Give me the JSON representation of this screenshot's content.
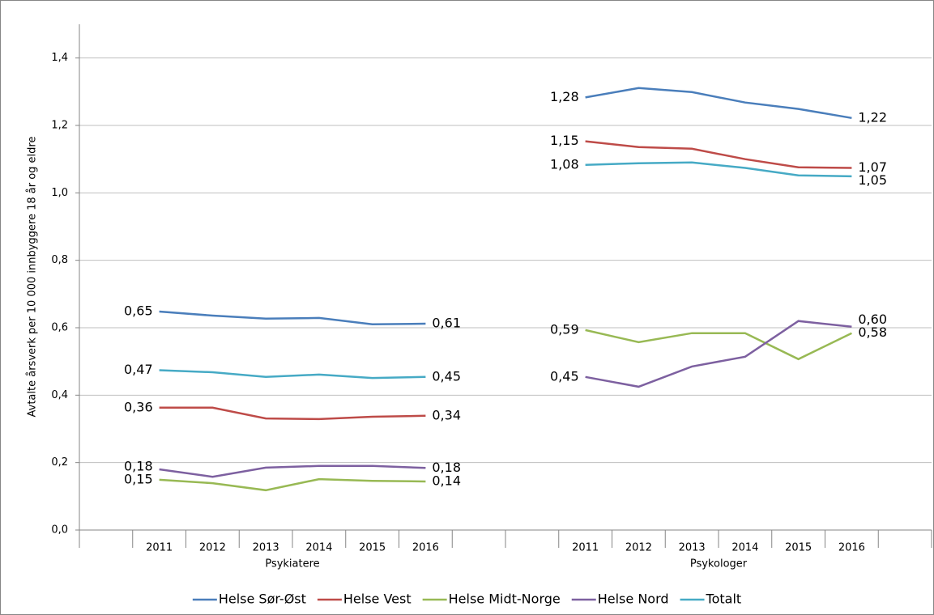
{
  "chart_data": {
    "type": "line",
    "y_label": "Avtalte årsverk per 10 000 innbyggere 18 år og eldre",
    "categories": [
      null,
      "2011",
      "2012",
      "2013",
      "2014",
      "2015",
      "2016",
      null,
      null,
      "2011",
      "2012",
      "2013",
      "2014",
      "2015",
      "2016",
      null
    ],
    "group_labels": [
      "Psykiatere",
      "Psykologer"
    ],
    "ylim": [
      0,
      1.5
    ],
    "yticks": [
      {
        "value": 0,
        "label": "0,0"
      },
      {
        "value": 0.2,
        "label": "0,2"
      },
      {
        "value": 0.4,
        "label": "0,4"
      },
      {
        "value": 0.6,
        "label": "0,6"
      },
      {
        "value": 0.8,
        "label": "0,8"
      },
      {
        "value": 1.0,
        "label": "1,0"
      },
      {
        "value": 1.2,
        "label": "1,2"
      },
      {
        "value": 1.4,
        "label": "1,4"
      }
    ],
    "grid": true,
    "legend": "bottom",
    "series": [
      {
        "name": "Helse Sør-Øst",
        "color": "#4a7ebb",
        "values": [
          null,
          0.648,
          0.636,
          0.627,
          0.629,
          0.61,
          0.612,
          null,
          null,
          1.283,
          1.311,
          1.299,
          1.268,
          1.249,
          1.222,
          null
        ],
        "value_labels": [
          null,
          "0,65",
          null,
          null,
          null,
          null,
          "0,61",
          null,
          null,
          "1,28",
          null,
          null,
          null,
          null,
          "1,22",
          null
        ]
      },
      {
        "name": "Helse Vest",
        "color": "#be4b48",
        "values": [
          null,
          0.363,
          0.363,
          0.331,
          0.329,
          0.336,
          0.339,
          null,
          null,
          1.153,
          1.136,
          1.131,
          1.1,
          1.076,
          1.074,
          null
        ],
        "value_labels": [
          null,
          "0,36",
          null,
          null,
          null,
          null,
          "0,34",
          null,
          null,
          "1,15",
          null,
          null,
          null,
          null,
          "1,07",
          null
        ]
      },
      {
        "name": "Helse Midt-Norge",
        "color": "#98b954",
        "values": [
          null,
          0.149,
          0.139,
          0.118,
          0.151,
          0.146,
          0.144,
          null,
          null,
          0.593,
          0.557,
          0.584,
          0.584,
          0.507,
          0.584,
          null
        ],
        "value_labels": [
          null,
          "0,15",
          null,
          null,
          null,
          null,
          "0,14",
          null,
          null,
          "0,59",
          null,
          null,
          null,
          null,
          "0,58",
          null
        ]
      },
      {
        "name": "Helse Nord",
        "color": "#7d60a0",
        "values": [
          null,
          0.18,
          0.158,
          0.185,
          0.19,
          0.19,
          0.184,
          null,
          null,
          0.454,
          0.425,
          0.485,
          0.514,
          0.62,
          0.603,
          null
        ],
        "value_labels": [
          null,
          "0,18",
          null,
          null,
          null,
          null,
          "0,18",
          null,
          null,
          "0,45",
          null,
          null,
          null,
          null,
          "0,60",
          null
        ]
      },
      {
        "name": "Totalt",
        "color": "#46aac5",
        "values": [
          null,
          0.474,
          0.468,
          0.454,
          0.461,
          0.451,
          0.454,
          null,
          null,
          1.083,
          1.088,
          1.09,
          1.074,
          1.052,
          1.049,
          null
        ],
        "value_labels": [
          null,
          "0,47",
          null,
          null,
          null,
          null,
          "0,45",
          null,
          null,
          "1,08",
          null,
          null,
          null,
          null,
          "1,05",
          null
        ]
      }
    ]
  }
}
